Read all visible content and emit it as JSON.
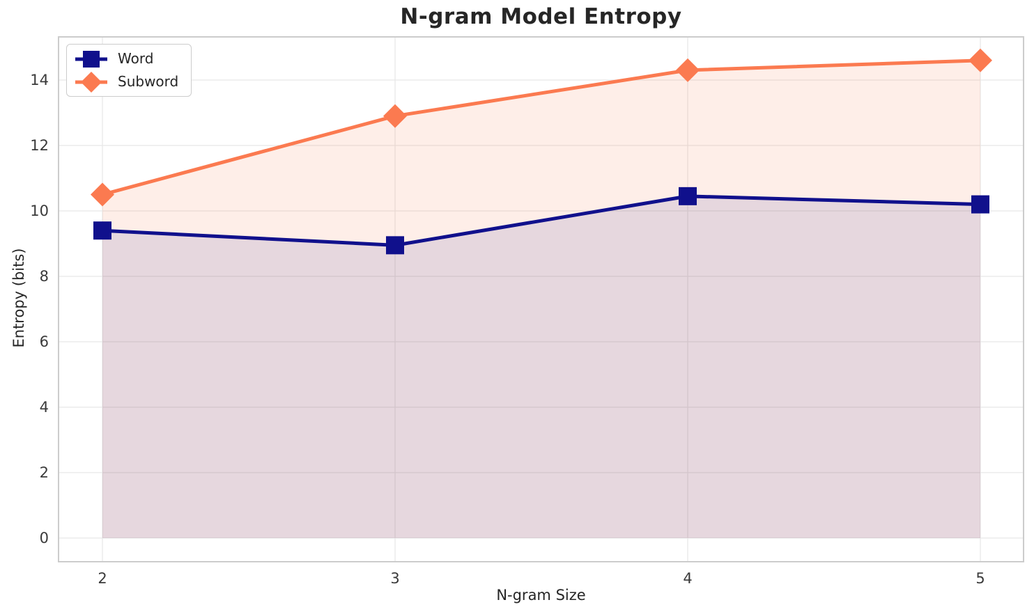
{
  "title": "N-gram Model Entropy",
  "chart_data": {
    "type": "line",
    "title": "N-gram Model Entropy",
    "xlabel": "N-gram Size",
    "ylabel": "Entropy (bits)",
    "x": [
      2,
      3,
      4,
      5
    ],
    "series": [
      {
        "name": "Word",
        "marker": "square",
        "color": "#10108c",
        "fill_alpha": 0.1,
        "values": [
          9.4,
          8.95,
          10.45,
          10.2
        ]
      },
      {
        "name": "Subword",
        "marker": "diamond",
        "color": "#fb7a50",
        "fill_alpha": 0.13,
        "values": [
          10.5,
          12.9,
          14.3,
          14.6
        ]
      }
    ],
    "xticks": [
      2,
      3,
      4,
      5
    ],
    "yticks": [
      0,
      2,
      4,
      6,
      8,
      10,
      12,
      14
    ],
    "xlim": [
      1.85,
      5.15
    ],
    "ylim": [
      -0.73,
      15.33
    ],
    "grid": true,
    "area_fill": true,
    "legend_position": "upper left"
  }
}
